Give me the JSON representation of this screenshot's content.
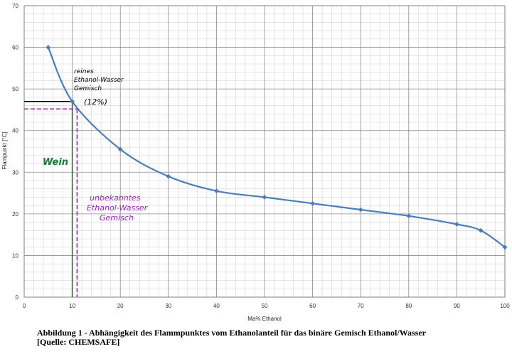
{
  "chart_data": {
    "type": "line",
    "xlabel": "Ma% Ethanol",
    "ylabel": "Flampunkt [°C]",
    "xlim": [
      0,
      100
    ],
    "ylim": [
      0,
      70
    ],
    "x_ticks": [
      0,
      10,
      20,
      30,
      40,
      50,
      60,
      70,
      80,
      90,
      100
    ],
    "y_ticks": [
      0,
      10,
      20,
      30,
      40,
      50,
      60,
      70
    ],
    "grid": true,
    "series": [
      {
        "color": "#4a7ebb",
        "points": [
          {
            "x": 5,
            "y": 60
          },
          {
            "x": 10,
            "y": 47
          },
          {
            "x": 20,
            "y": 35.5
          },
          {
            "x": 30,
            "y": 29
          },
          {
            "x": 40,
            "y": 25.5
          },
          {
            "x": 50,
            "y": 24
          },
          {
            "x": 60,
            "y": 22.5
          },
          {
            "x": 70,
            "y": 21
          },
          {
            "x": 80,
            "y": 19.5
          },
          {
            "x": 90,
            "y": 17.5
          },
          {
            "x": 95,
            "y": 16
          },
          {
            "x": 100,
            "y": 12
          }
        ]
      }
    ],
    "reference_lines": [
      {
        "x": 10,
        "y": 47,
        "color": "#000000",
        "style": "solid",
        "vertical_color": "#1a6b2e"
      },
      {
        "x": 11,
        "y": 45.2,
        "color": "#a020a0",
        "style": "dashed"
      }
    ],
    "annotations": [
      {
        "text": "reines Ethanol-Wasser Gemisch",
        "color": "#000000"
      },
      {
        "text": "(12%)",
        "color": "#000000"
      },
      {
        "text": "Wein",
        "color": "#1a7a3a"
      },
      {
        "text": "unbekanntes Ethanol-Wasser Gemisch",
        "color": "#a020c0"
      }
    ]
  },
  "caption": {
    "line1": "Abbildung 1 - Abhängigkeit des Flammpunktes vom Ethanolanteil für das binäre Gemisch Ethanol/Wasser",
    "line2": "[Quelle: CHEMSAFE]"
  }
}
